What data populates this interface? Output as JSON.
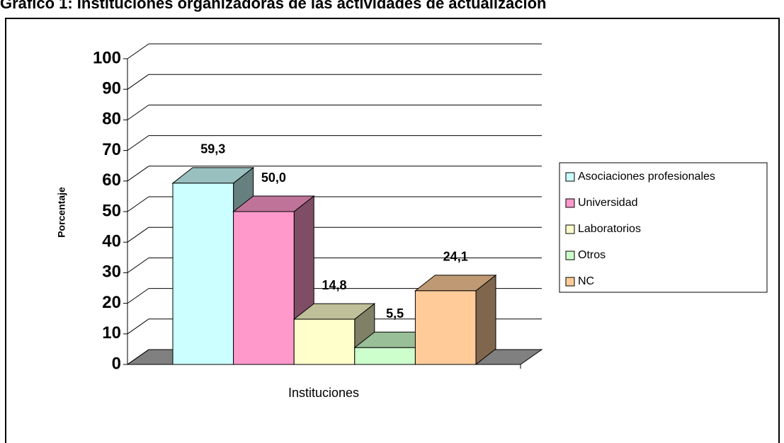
{
  "chart_data": {
    "type": "bar3d",
    "title": "Gráfico 1: Instituciones organizadoras de las actividades de actualización",
    "x_label": "Instituciones",
    "y_label": "Porcentaje",
    "ylim": [
      0,
      100
    ],
    "yticks": [
      0,
      10,
      20,
      30,
      40,
      50,
      60,
      70,
      80,
      90,
      100
    ],
    "grid": true,
    "legend": "right",
    "series": [
      {
        "name": "Asociaciones profesionales",
        "color": "#ccffff",
        "values": [
          59.3
        ],
        "value_labels": [
          "59,3"
        ]
      },
      {
        "name": "Universidad",
        "color": "#ff99cc",
        "values": [
          50.0
        ],
        "value_labels": [
          "50,0"
        ]
      },
      {
        "name": "Laboratorios",
        "color": "#ffffcc",
        "values": [
          14.8
        ],
        "value_labels": [
          "14,8"
        ]
      },
      {
        "name": "Otros",
        "color": "#ccffcc",
        "values": [
          5.5
        ],
        "value_labels": [
          "5,5"
        ]
      },
      {
        "name": "NC",
        "color": "#ffcc99",
        "values": [
          24.1
        ],
        "value_labels": [
          "24,1"
        ]
      }
    ]
  }
}
